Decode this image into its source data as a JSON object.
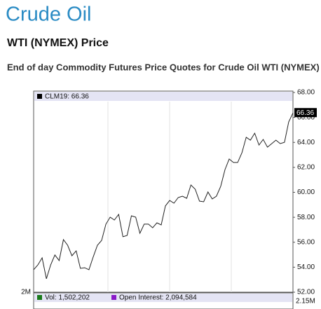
{
  "header": {
    "title": "Crude Oil",
    "subtitle": "WTI (NYMEX) Price",
    "description": "End of day Commodity Futures Price Quotes for Crude Oil WTI (NYMEX)"
  },
  "chart_data": {
    "type": "line",
    "legend": "CLM19: 66.36",
    "last_label": "66.36",
    "color": "#222222",
    "values": [
      53.8,
      54.19,
      54.75,
      53.07,
      54.19,
      54.98,
      54.53,
      56.21,
      55.76,
      54.92,
      55.31,
      53.91,
      53.96,
      53.8,
      54.81,
      55.76,
      56.15,
      57.45,
      58.01,
      57.78,
      58.23,
      56.44,
      56.55,
      58.12,
      58.01,
      56.72,
      57.45,
      57.45,
      57.16,
      57.56,
      57.39,
      58.91,
      59.35,
      59.13,
      59.58,
      59.69,
      59.52,
      60.59,
      60.25,
      59.3,
      59.24,
      60.03,
      59.47,
      59.69,
      60.48,
      61.82,
      62.67,
      62.39,
      62.39,
      63.17,
      64.41,
      64.18,
      64.74,
      63.79,
      64.24,
      63.62,
      63.9,
      64.18,
      63.9,
      64.01,
      65.64,
      66.36
    ],
    "ylim": [
      52,
      68
    ],
    "yticks": [
      {
        "value": 52,
        "label": "52.00"
      },
      {
        "value": 54,
        "label": "54.00"
      },
      {
        "value": 56,
        "label": "56.00"
      },
      {
        "value": 58,
        "label": "58.00"
      },
      {
        "value": 60,
        "label": "60.00"
      },
      {
        "value": 62,
        "label": "62.00"
      },
      {
        "value": 64,
        "label": "64.00"
      },
      {
        "value": 66,
        "label": "66.00"
      },
      {
        "value": 68,
        "label": "68.00"
      }
    ],
    "volume_panel": {
      "volume": "Vol: 1,502,202",
      "open_interest": "Open Interest: 2,094,584",
      "left_label": "2M",
      "right_label": "2.15M"
    }
  }
}
